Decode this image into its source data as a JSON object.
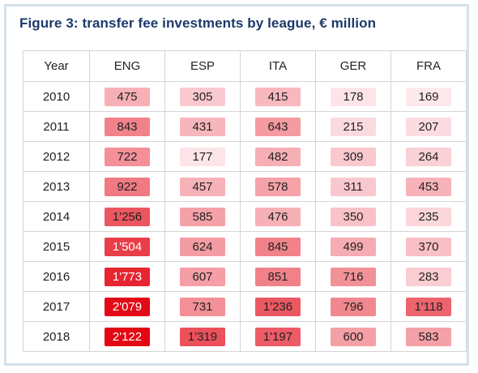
{
  "chart_data": {
    "type": "table",
    "title": "Figure 3: transfer fee investments by league, € million",
    "columns": [
      "Year",
      "ENG",
      "ESP",
      "ITA",
      "GER",
      "FRA"
    ],
    "rows": [
      {
        "year": "2010",
        "values": [
          "475",
          "305",
          "415",
          "178",
          "169"
        ]
      },
      {
        "year": "2011",
        "values": [
          "843",
          "431",
          "643",
          "215",
          "207"
        ]
      },
      {
        "year": "2012",
        "values": [
          "722",
          "177",
          "482",
          "309",
          "264"
        ]
      },
      {
        "year": "2013",
        "values": [
          "922",
          "457",
          "578",
          "311",
          "453"
        ]
      },
      {
        "year": "2014",
        "values": [
          "1'256",
          "585",
          "476",
          "350",
          "235"
        ]
      },
      {
        "year": "2015",
        "values": [
          "1'504",
          "624",
          "845",
          "499",
          "370"
        ]
      },
      {
        "year": "2016",
        "values": [
          "1'773",
          "607",
          "851",
          "716",
          "283"
        ]
      },
      {
        "year": "2017",
        "values": [
          "2'079",
          "731",
          "1'236",
          "796",
          "1'118"
        ]
      },
      {
        "year": "2018",
        "values": [
          "2'122",
          "1'319",
          "1'197",
          "600",
          "583"
        ]
      }
    ],
    "colors": {
      "lowest": "#fde8ec",
      "highest": "#e30613",
      "text_dark": "#222222",
      "text_light": "#ffffff"
    }
  }
}
